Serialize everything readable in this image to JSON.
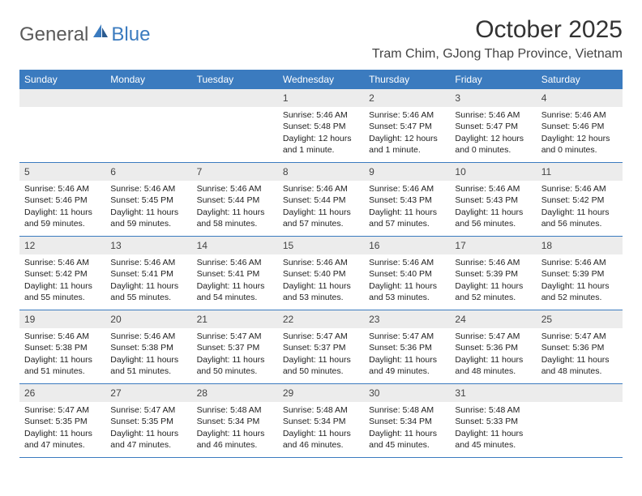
{
  "brand": {
    "part1": "General",
    "part2": "Blue"
  },
  "title": "October 2025",
  "location": "Tram Chim, GJong Thap Province, Vietnam",
  "colors": {
    "header_bg": "#3b7bbf",
    "daynum_bg": "#ececec",
    "row_border": "#3b7bbf",
    "text": "#333333",
    "bg": "#ffffff"
  },
  "weekdays": [
    "Sunday",
    "Monday",
    "Tuesday",
    "Wednesday",
    "Thursday",
    "Friday",
    "Saturday"
  ],
  "weeks": [
    [
      {
        "empty": true
      },
      {
        "empty": true
      },
      {
        "empty": true
      },
      {
        "day": "1",
        "sunrise": "Sunrise: 5:46 AM",
        "sunset": "Sunset: 5:48 PM",
        "daylight": "Daylight: 12 hours and 1 minute."
      },
      {
        "day": "2",
        "sunrise": "Sunrise: 5:46 AM",
        "sunset": "Sunset: 5:47 PM",
        "daylight": "Daylight: 12 hours and 1 minute."
      },
      {
        "day": "3",
        "sunrise": "Sunrise: 5:46 AM",
        "sunset": "Sunset: 5:47 PM",
        "daylight": "Daylight: 12 hours and 0 minutes."
      },
      {
        "day": "4",
        "sunrise": "Sunrise: 5:46 AM",
        "sunset": "Sunset: 5:46 PM",
        "daylight": "Daylight: 12 hours and 0 minutes."
      }
    ],
    [
      {
        "day": "5",
        "sunrise": "Sunrise: 5:46 AM",
        "sunset": "Sunset: 5:46 PM",
        "daylight": "Daylight: 11 hours and 59 minutes."
      },
      {
        "day": "6",
        "sunrise": "Sunrise: 5:46 AM",
        "sunset": "Sunset: 5:45 PM",
        "daylight": "Daylight: 11 hours and 59 minutes."
      },
      {
        "day": "7",
        "sunrise": "Sunrise: 5:46 AM",
        "sunset": "Sunset: 5:44 PM",
        "daylight": "Daylight: 11 hours and 58 minutes."
      },
      {
        "day": "8",
        "sunrise": "Sunrise: 5:46 AM",
        "sunset": "Sunset: 5:44 PM",
        "daylight": "Daylight: 11 hours and 57 minutes."
      },
      {
        "day": "9",
        "sunrise": "Sunrise: 5:46 AM",
        "sunset": "Sunset: 5:43 PM",
        "daylight": "Daylight: 11 hours and 57 minutes."
      },
      {
        "day": "10",
        "sunrise": "Sunrise: 5:46 AM",
        "sunset": "Sunset: 5:43 PM",
        "daylight": "Daylight: 11 hours and 56 minutes."
      },
      {
        "day": "11",
        "sunrise": "Sunrise: 5:46 AM",
        "sunset": "Sunset: 5:42 PM",
        "daylight": "Daylight: 11 hours and 56 minutes."
      }
    ],
    [
      {
        "day": "12",
        "sunrise": "Sunrise: 5:46 AM",
        "sunset": "Sunset: 5:42 PM",
        "daylight": "Daylight: 11 hours and 55 minutes."
      },
      {
        "day": "13",
        "sunrise": "Sunrise: 5:46 AM",
        "sunset": "Sunset: 5:41 PM",
        "daylight": "Daylight: 11 hours and 55 minutes."
      },
      {
        "day": "14",
        "sunrise": "Sunrise: 5:46 AM",
        "sunset": "Sunset: 5:41 PM",
        "daylight": "Daylight: 11 hours and 54 minutes."
      },
      {
        "day": "15",
        "sunrise": "Sunrise: 5:46 AM",
        "sunset": "Sunset: 5:40 PM",
        "daylight": "Daylight: 11 hours and 53 minutes."
      },
      {
        "day": "16",
        "sunrise": "Sunrise: 5:46 AM",
        "sunset": "Sunset: 5:40 PM",
        "daylight": "Daylight: 11 hours and 53 minutes."
      },
      {
        "day": "17",
        "sunrise": "Sunrise: 5:46 AM",
        "sunset": "Sunset: 5:39 PM",
        "daylight": "Daylight: 11 hours and 52 minutes."
      },
      {
        "day": "18",
        "sunrise": "Sunrise: 5:46 AM",
        "sunset": "Sunset: 5:39 PM",
        "daylight": "Daylight: 11 hours and 52 minutes."
      }
    ],
    [
      {
        "day": "19",
        "sunrise": "Sunrise: 5:46 AM",
        "sunset": "Sunset: 5:38 PM",
        "daylight": "Daylight: 11 hours and 51 minutes."
      },
      {
        "day": "20",
        "sunrise": "Sunrise: 5:46 AM",
        "sunset": "Sunset: 5:38 PM",
        "daylight": "Daylight: 11 hours and 51 minutes."
      },
      {
        "day": "21",
        "sunrise": "Sunrise: 5:47 AM",
        "sunset": "Sunset: 5:37 PM",
        "daylight": "Daylight: 11 hours and 50 minutes."
      },
      {
        "day": "22",
        "sunrise": "Sunrise: 5:47 AM",
        "sunset": "Sunset: 5:37 PM",
        "daylight": "Daylight: 11 hours and 50 minutes."
      },
      {
        "day": "23",
        "sunrise": "Sunrise: 5:47 AM",
        "sunset": "Sunset: 5:36 PM",
        "daylight": "Daylight: 11 hours and 49 minutes."
      },
      {
        "day": "24",
        "sunrise": "Sunrise: 5:47 AM",
        "sunset": "Sunset: 5:36 PM",
        "daylight": "Daylight: 11 hours and 48 minutes."
      },
      {
        "day": "25",
        "sunrise": "Sunrise: 5:47 AM",
        "sunset": "Sunset: 5:36 PM",
        "daylight": "Daylight: 11 hours and 48 minutes."
      }
    ],
    [
      {
        "day": "26",
        "sunrise": "Sunrise: 5:47 AM",
        "sunset": "Sunset: 5:35 PM",
        "daylight": "Daylight: 11 hours and 47 minutes."
      },
      {
        "day": "27",
        "sunrise": "Sunrise: 5:47 AM",
        "sunset": "Sunset: 5:35 PM",
        "daylight": "Daylight: 11 hours and 47 minutes."
      },
      {
        "day": "28",
        "sunrise": "Sunrise: 5:48 AM",
        "sunset": "Sunset: 5:34 PM",
        "daylight": "Daylight: 11 hours and 46 minutes."
      },
      {
        "day": "29",
        "sunrise": "Sunrise: 5:48 AM",
        "sunset": "Sunset: 5:34 PM",
        "daylight": "Daylight: 11 hours and 46 minutes."
      },
      {
        "day": "30",
        "sunrise": "Sunrise: 5:48 AM",
        "sunset": "Sunset: 5:34 PM",
        "daylight": "Daylight: 11 hours and 45 minutes."
      },
      {
        "day": "31",
        "sunrise": "Sunrise: 5:48 AM",
        "sunset": "Sunset: 5:33 PM",
        "daylight": "Daylight: 11 hours and 45 minutes."
      },
      {
        "empty": true
      }
    ]
  ]
}
